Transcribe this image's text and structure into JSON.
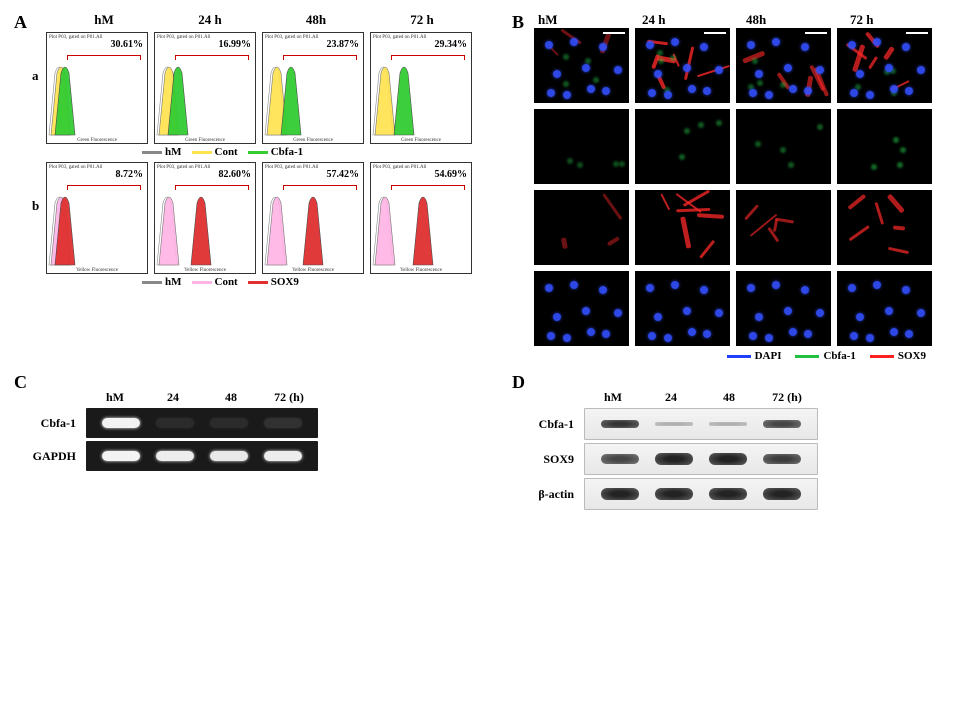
{
  "panelA": {
    "label": "A",
    "columns": [
      "hM",
      "24 h",
      "48h",
      "72 h"
    ],
    "rows": [
      {
        "rowlabel": "a",
        "fill": "#33cc33",
        "control_fill": "#ffe34d",
        "pcts": [
          "30.61%",
          "16.99%",
          "23.87%",
          "29.34%"
        ],
        "xaxis": "Green Fluorescence",
        "legend": [
          {
            "swatch": "#888888",
            "label": "hM"
          },
          {
            "swatch": "#ffe34d",
            "label": "Cont"
          },
          {
            "swatch": "#33cc33",
            "label": "Cbfa-1"
          }
        ],
        "hist_shift": [
          0,
          5,
          10,
          15
        ]
      },
      {
        "rowlabel": "b",
        "fill": "#e03030",
        "control_fill": "#ffb3e6",
        "pcts": [
          "8.72%",
          "82.60%",
          "57.42%",
          "54.69%"
        ],
        "xaxis": "Yellow Fluorescence",
        "legend": [
          {
            "swatch": "#888888",
            "label": "hM"
          },
          {
            "swatch": "#ffb3e6",
            "label": "Cont"
          },
          {
            "swatch": "#e03030",
            "label": "SOX9"
          }
        ],
        "hist_shift": [
          0,
          28,
          32,
          34
        ]
      }
    ],
    "tiny_header": "Plot P03, gated on P01.All"
  },
  "panelB": {
    "label": "B",
    "columns": [
      "hM",
      "24 h",
      "48h",
      "72 h"
    ],
    "legend": [
      {
        "swatch": "#2040ff",
        "label": "DAPI"
      },
      {
        "swatch": "#20c040",
        "label": "Cbfa-1"
      },
      {
        "swatch": "#ff2020",
        "label": "SOX9"
      }
    ],
    "rows": [
      {
        "channels": [
          "blue",
          "green",
          "red"
        ],
        "show_scalebar": true,
        "red_intensity": [
          0.2,
          0.8,
          0.5,
          0.7
        ]
      },
      {
        "channels": [
          "green"
        ],
        "show_scalebar": false,
        "green_intensity": [
          0.15,
          0.22,
          0.2,
          0.28
        ]
      },
      {
        "channels": [
          "red"
        ],
        "show_scalebar": false,
        "red_intensity": [
          0.2,
          0.75,
          0.5,
          0.65
        ]
      },
      {
        "channels": [
          "blue"
        ],
        "show_scalebar": false
      }
    ]
  },
  "panelC": {
    "label": "C",
    "columns": [
      "hM",
      "24",
      "48",
      "72 (h)"
    ],
    "lanes": [
      {
        "gene": "Cbfa-1",
        "bg": "dark",
        "band_color": "#ffffff",
        "intensities": [
          0.95,
          0.08,
          0.08,
          0.1
        ]
      },
      {
        "gene": "GAPDH",
        "bg": "dark",
        "band_color": "#ffffff",
        "intensities": [
          0.95,
          0.92,
          0.9,
          0.92
        ]
      }
    ]
  },
  "panelD": {
    "label": "D",
    "columns": [
      "hM",
      "24",
      "48",
      "72 (h)"
    ],
    "lanes": [
      {
        "gene": "Cbfa-1",
        "bg": "light",
        "intensities": [
          0.8,
          0.1,
          0.1,
          0.7
        ],
        "heights": [
          8,
          4,
          4,
          8
        ]
      },
      {
        "gene": "SOX9",
        "bg": "light",
        "intensities": [
          0.7,
          0.9,
          0.9,
          0.75
        ],
        "heights": [
          10,
          12,
          12,
          10
        ]
      },
      {
        "gene": "β-actin",
        "bg": "light",
        "intensities": [
          0.9,
          0.9,
          0.9,
          0.9
        ],
        "heights": [
          12,
          12,
          12,
          12
        ]
      }
    ]
  },
  "colors": {
    "panel_bg": "#ffffff",
    "axis": "#333333"
  }
}
